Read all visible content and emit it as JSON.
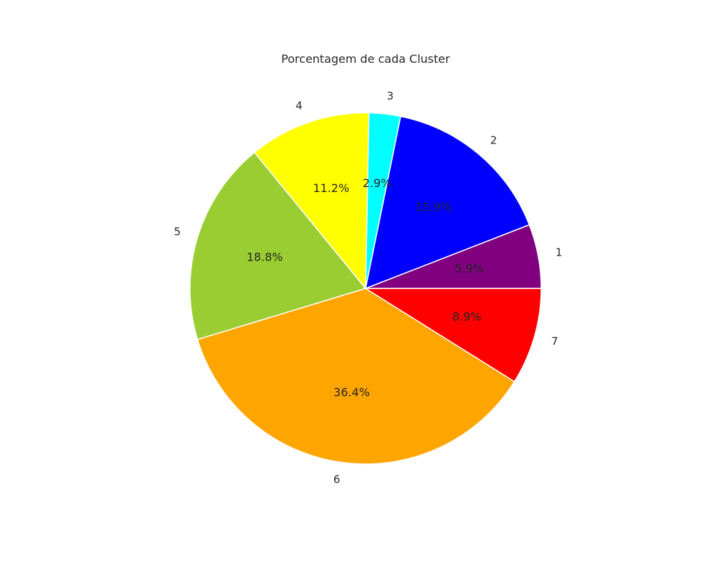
{
  "chart_data": {
    "type": "pie",
    "title": "Porcentagem de cada Cluster",
    "labels": [
      "1",
      "2",
      "3",
      "4",
      "5",
      "6",
      "7"
    ],
    "values": [
      5.9,
      15.9,
      2.9,
      11.2,
      18.8,
      36.4,
      8.9
    ],
    "value_labels": [
      "5.9%",
      "15.9%",
      "2.9%",
      "11.2%",
      "18.8%",
      "36.4%",
      "8.9%"
    ],
    "colors": [
      "#800080",
      "#0000ff",
      "#00ffff",
      "#ffff00",
      "#9acd32",
      "#ffa500",
      "#ff0000"
    ],
    "start_angle_deg": 0,
    "direction": "counterclockwise",
    "legend": "none"
  }
}
